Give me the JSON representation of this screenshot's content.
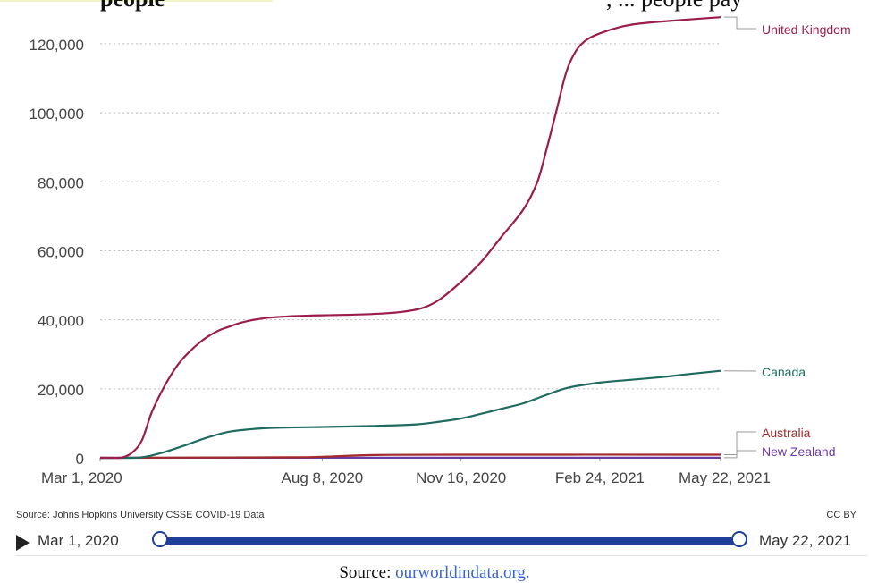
{
  "header": {
    "fragment_left": "people",
    "fragment_right": ", ... people pay"
  },
  "chart_data": {
    "type": "line",
    "x_ticks": [
      "Mar 1, 2020",
      "Aug 8, 2020",
      "Nov 16, 2020",
      "Feb 24, 2021",
      "May 22, 2021"
    ],
    "xlim": [
      "2020-03-01",
      "2021-05-22"
    ],
    "y_ticks": [
      "0",
      "20,000",
      "40,000",
      "60,000",
      "80,000",
      "100,000",
      "120,000"
    ],
    "ylim": [
      0,
      128000
    ],
    "grid": "horizontal-dotted",
    "series": [
      {
        "name": "United Kingdom",
        "color": "#9b1d4d",
        "points": [
          [
            "2020-03-01",
            0
          ],
          [
            "2020-03-10",
            0
          ],
          [
            "2020-03-17",
            100
          ],
          [
            "2020-03-24",
            1500
          ],
          [
            "2020-03-31",
            5000
          ],
          [
            "2020-04-07",
            13000
          ],
          [
            "2020-04-14",
            19000
          ],
          [
            "2020-04-21",
            24000
          ],
          [
            "2020-04-28",
            28000
          ],
          [
            "2020-05-05",
            31000
          ],
          [
            "2020-05-12",
            33500
          ],
          [
            "2020-05-19",
            35500
          ],
          [
            "2020-05-26",
            37000
          ],
          [
            "2020-06-02",
            38000
          ],
          [
            "2020-06-09",
            39000
          ],
          [
            "2020-06-16",
            39700
          ],
          [
            "2020-06-23",
            40200
          ],
          [
            "2020-06-30",
            40600
          ],
          [
            "2020-07-15",
            41000
          ],
          [
            "2020-08-08",
            41300
          ],
          [
            "2020-09-01",
            41500
          ],
          [
            "2020-09-20",
            41800
          ],
          [
            "2020-10-05",
            42300
          ],
          [
            "2020-10-20",
            43500
          ],
          [
            "2020-11-01",
            46000
          ],
          [
            "2020-11-16",
            51000
          ],
          [
            "2020-12-01",
            57000
          ],
          [
            "2020-12-15",
            64000
          ],
          [
            "2020-12-31",
            72000
          ],
          [
            "2021-01-10",
            80000
          ],
          [
            "2021-01-17",
            90000
          ],
          [
            "2021-01-24",
            101000
          ],
          [
            "2021-01-31",
            112000
          ],
          [
            "2021-02-07",
            118000
          ],
          [
            "2021-02-14",
            121000
          ],
          [
            "2021-02-24",
            123000
          ],
          [
            "2021-03-10",
            124800
          ],
          [
            "2021-03-24",
            125800
          ],
          [
            "2021-04-15",
            126600
          ],
          [
            "2021-05-22",
            127700
          ]
        ]
      },
      {
        "name": "Canada",
        "color": "#1f6b5f",
        "points": [
          [
            "2020-03-01",
            0
          ],
          [
            "2020-03-20",
            0
          ],
          [
            "2020-04-01",
            200
          ],
          [
            "2020-04-15",
            1500
          ],
          [
            "2020-05-01",
            3600
          ],
          [
            "2020-05-15",
            5600
          ],
          [
            "2020-06-01",
            7500
          ],
          [
            "2020-06-15",
            8200
          ],
          [
            "2020-07-01",
            8650
          ],
          [
            "2020-08-08",
            8950
          ],
          [
            "2020-09-15",
            9250
          ],
          [
            "2020-10-15",
            9700
          ],
          [
            "2020-11-01",
            10500
          ],
          [
            "2020-11-16",
            11400
          ],
          [
            "2020-12-01",
            12800
          ],
          [
            "2020-12-15",
            14200
          ],
          [
            "2020-12-31",
            15800
          ],
          [
            "2021-01-15",
            18000
          ],
          [
            "2021-02-01",
            20300
          ],
          [
            "2021-02-24",
            21800
          ],
          [
            "2021-03-15",
            22500
          ],
          [
            "2021-04-10",
            23400
          ],
          [
            "2021-04-30",
            24300
          ],
          [
            "2021-05-22",
            25200
          ]
        ]
      },
      {
        "name": "Australia",
        "color": "#a32b2b",
        "points": [
          [
            "2020-03-01",
            0
          ],
          [
            "2020-04-15",
            60
          ],
          [
            "2020-07-15",
            150
          ],
          [
            "2020-08-08",
            300
          ],
          [
            "2020-09-15",
            800
          ],
          [
            "2020-11-16",
            907
          ],
          [
            "2021-05-22",
            910
          ]
        ]
      },
      {
        "name": "New Zealand",
        "color": "#6b3aa5",
        "points": [
          [
            "2020-03-01",
            0
          ],
          [
            "2020-05-01",
            20
          ],
          [
            "2021-05-22",
            26
          ]
        ]
      }
    ]
  },
  "footer": {
    "source": "Source: Johns Hopkins University CSSE COVID-19 Data",
    "license": "CC BY"
  },
  "timeline": {
    "start_label": "Mar 1, 2020",
    "end_label": "May 22, 2021"
  },
  "caption": {
    "prefix": "Source: ",
    "link_text": "ourworldindata.org."
  }
}
